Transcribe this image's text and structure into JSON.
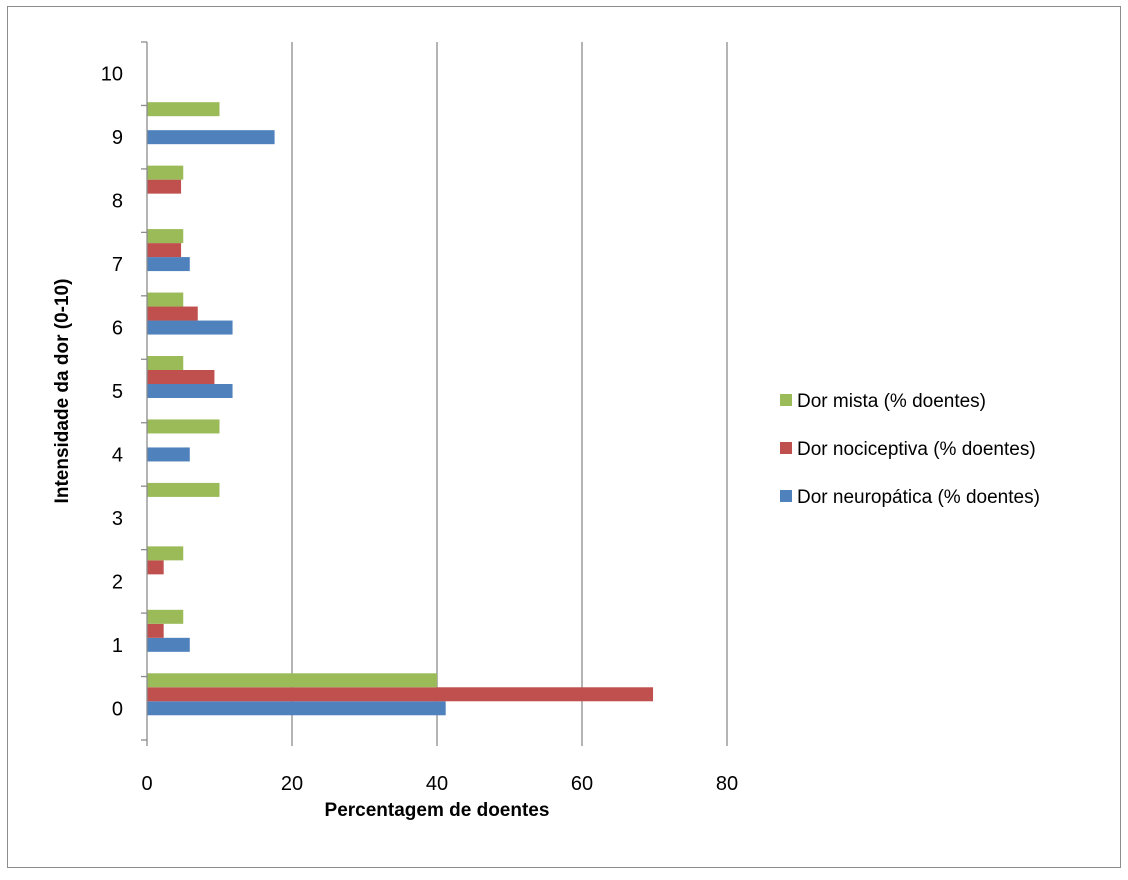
{
  "chart_data": {
    "type": "bar",
    "orientation": "horizontal",
    "title": "",
    "xlabel": "Percentagem de doentes",
    "ylabel": "Intensidade da dor (0-10)",
    "categories": [
      "0",
      "1",
      "2",
      "3",
      "4",
      "5",
      "6",
      "7",
      "8",
      "9",
      "10"
    ],
    "xlim": [
      0,
      80
    ],
    "xticks": [
      "0",
      "20",
      "40",
      "60",
      "80"
    ],
    "grid": "vertical major gridlines",
    "legend_position": "right",
    "series": [
      {
        "name": "Dor neuropática (% doentes)",
        "color": "#4f81bd",
        "values": [
          41.2,
          5.9,
          0,
          0,
          5.9,
          11.8,
          11.8,
          5.9,
          0,
          17.6,
          0
        ]
      },
      {
        "name": "Dor nociceptiva (% doentes)",
        "color": "#c0504d",
        "values": [
          69.8,
          2.3,
          2.3,
          0,
          0,
          9.3,
          7.0,
          4.7,
          4.7,
          0,
          0
        ]
      },
      {
        "name": "Dor mista (% doentes)",
        "color": "#9bbb59",
        "values": [
          40,
          5,
          5,
          10,
          10,
          5,
          5,
          5,
          5,
          10,
          0
        ]
      }
    ],
    "legend_order": [
      2,
      1,
      0
    ]
  }
}
